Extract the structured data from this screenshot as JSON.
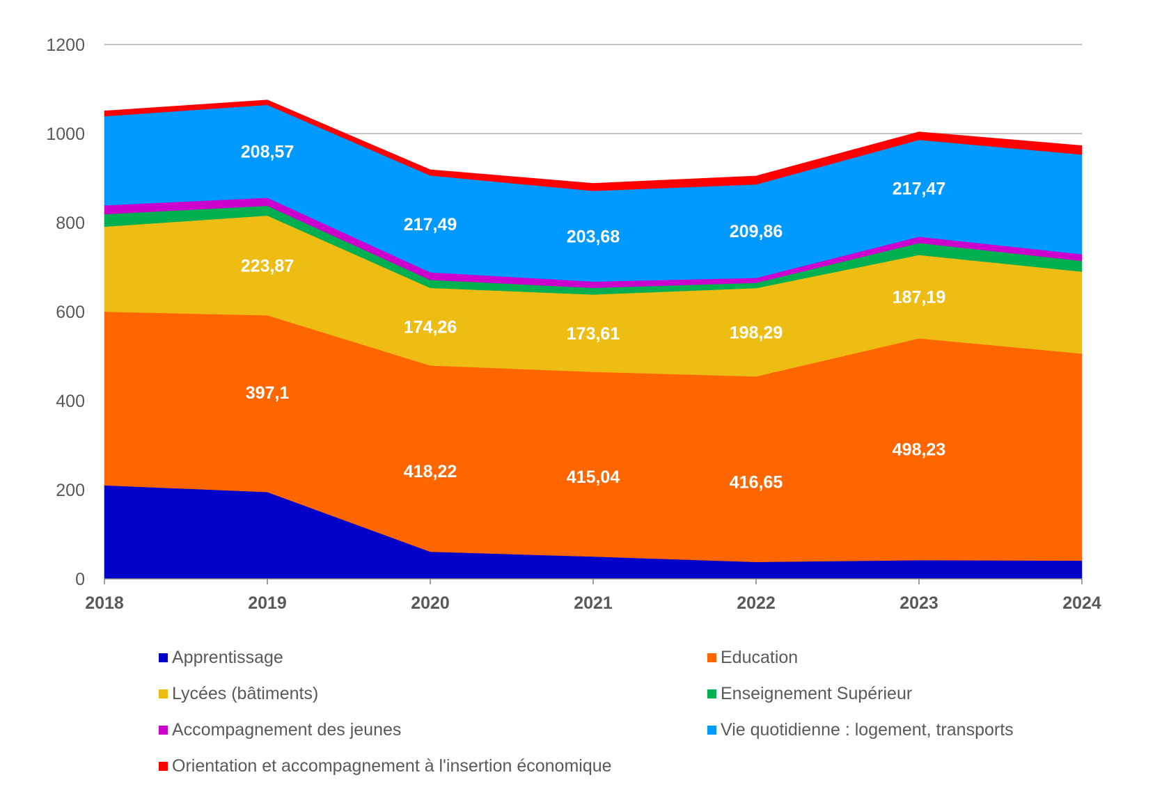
{
  "chart_data": {
    "type": "area",
    "stacked": true,
    "title": "",
    "xlabel": "",
    "ylabel": "",
    "x": [
      "2018",
      "2019",
      "2020",
      "2021",
      "2022",
      "2023",
      "2024"
    ],
    "ylim": [
      0,
      1200
    ],
    "yticks": [
      "0",
      "200",
      "400",
      "600",
      "800",
      "1000",
      "1200"
    ],
    "ytick_values": [
      0,
      200,
      400,
      600,
      800,
      1000,
      1200
    ],
    "grid": "horizontal",
    "legend_position": "bottom",
    "series": [
      {
        "name": "Apprentissage",
        "color": "#0000C8",
        "values": [
          210,
          195,
          61,
          50,
          38,
          42,
          41
        ],
        "labels": [
          null,
          null,
          null,
          null,
          null,
          null,
          null
        ]
      },
      {
        "name": "Education",
        "color": "#FF6600",
        "values": [
          390,
          397.1,
          418.22,
          415.04,
          416.65,
          498.23,
          465
        ],
        "labels": [
          null,
          "397,1",
          "418,22",
          "415,04",
          "416,65",
          "498,23",
          null
        ]
      },
      {
        "name": "Lycées (bâtiments)",
        "color": "#EEBD14",
        "values": [
          191,
          223.87,
          174.26,
          173.61,
          198.29,
          187.19,
          184
        ],
        "labels": [
          null,
          "223,87",
          "174,26",
          "173,61",
          "198,29",
          "187,19",
          null
        ]
      },
      {
        "name": "Enseignement Supérieur",
        "color": "#00B050",
        "values": [
          28,
          22,
          18,
          15,
          12,
          27,
          24
        ],
        "labels": [
          null,
          null,
          null,
          null,
          null,
          null,
          null
        ]
      },
      {
        "name": "Accompagnement des jeunes",
        "color": "#CC00CC",
        "values": [
          20,
          18,
          17,
          14,
          11,
          14,
          15
        ],
        "labels": [
          null,
          null,
          null,
          null,
          null,
          null,
          null
        ]
      },
      {
        "name": "Vie quotidienne : logement, transports",
        "color": "#0099FF",
        "values": [
          200,
          208.57,
          217.49,
          203.68,
          209.86,
          217.47,
          224
        ],
        "labels": [
          null,
          "208,57",
          "217,49",
          "203,68",
          "209,86",
          "217,47",
          null
        ]
      },
      {
        "name": "Orientation et accompagnement à l'insertion économique",
        "color": "#FF0000",
        "values": [
          12,
          11,
          13,
          17,
          19,
          18,
          20
        ],
        "labels": [
          null,
          null,
          null,
          null,
          null,
          null,
          null
        ]
      }
    ]
  },
  "legend": {
    "items": [
      {
        "label": "Apprentissage",
        "color": "#0000C8"
      },
      {
        "label": "Education",
        "color": "#FF6600"
      },
      {
        "label": "Lycées (bâtiments)",
        "color": "#EEBD14"
      },
      {
        "label": "Enseignement Supérieur",
        "color": "#00B050"
      },
      {
        "label": "Accompagnement des jeunes",
        "color": "#CC00CC"
      },
      {
        "label": "Vie quotidienne : logement, transports",
        "color": "#0099FF"
      },
      {
        "label": "Orientation et accompagnement à l'insertion économique",
        "color": "#FF0000"
      }
    ]
  }
}
